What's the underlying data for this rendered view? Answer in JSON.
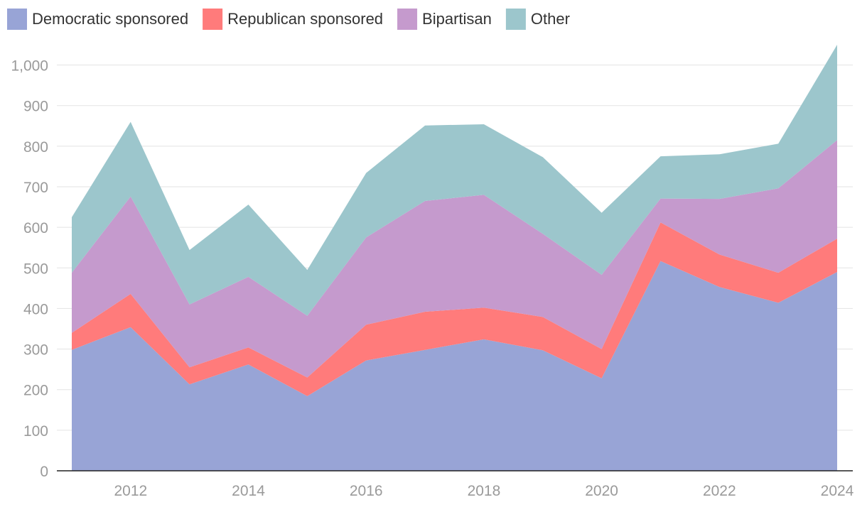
{
  "chart_data": {
    "type": "area",
    "stacked": true,
    "x": [
      2011,
      2012,
      2013,
      2014,
      2015,
      2016,
      2017,
      2018,
      2019,
      2020,
      2021,
      2022,
      2023,
      2024
    ],
    "x_tick_labels": [
      "2012",
      "2014",
      "2016",
      "2018",
      "2020",
      "2022",
      "2024"
    ],
    "y_tick_labels": [
      "0",
      "100",
      "200",
      "300",
      "400",
      "500",
      "600",
      "700",
      "800",
      "900",
      "1,000"
    ],
    "ylim": [
      0,
      1050
    ],
    "grid": "horizontal",
    "legend_position": "top-left",
    "series": [
      {
        "name": "Democratic sponsored",
        "color": "#98a4d6",
        "values": [
          298,
          354,
          213,
          262,
          184,
          272,
          298,
          324,
          297,
          228,
          517,
          453,
          414,
          490
        ]
      },
      {
        "name": "Republican sponsored",
        "color": "#ff7b7b",
        "values": [
          42,
          82,
          42,
          42,
          46,
          88,
          94,
          78,
          82,
          72,
          95,
          80,
          74,
          82
        ]
      },
      {
        "name": "Bipartisan",
        "color": "#c59acd",
        "values": [
          148,
          240,
          155,
          174,
          152,
          215,
          273,
          278,
          205,
          183,
          59,
          137,
          208,
          243
        ]
      },
      {
        "name": "Other",
        "color": "#9cc6cc",
        "values": [
          137,
          184,
          134,
          178,
          113,
          159,
          186,
          174,
          189,
          153,
          104,
          110,
          110,
          235
        ]
      }
    ]
  }
}
